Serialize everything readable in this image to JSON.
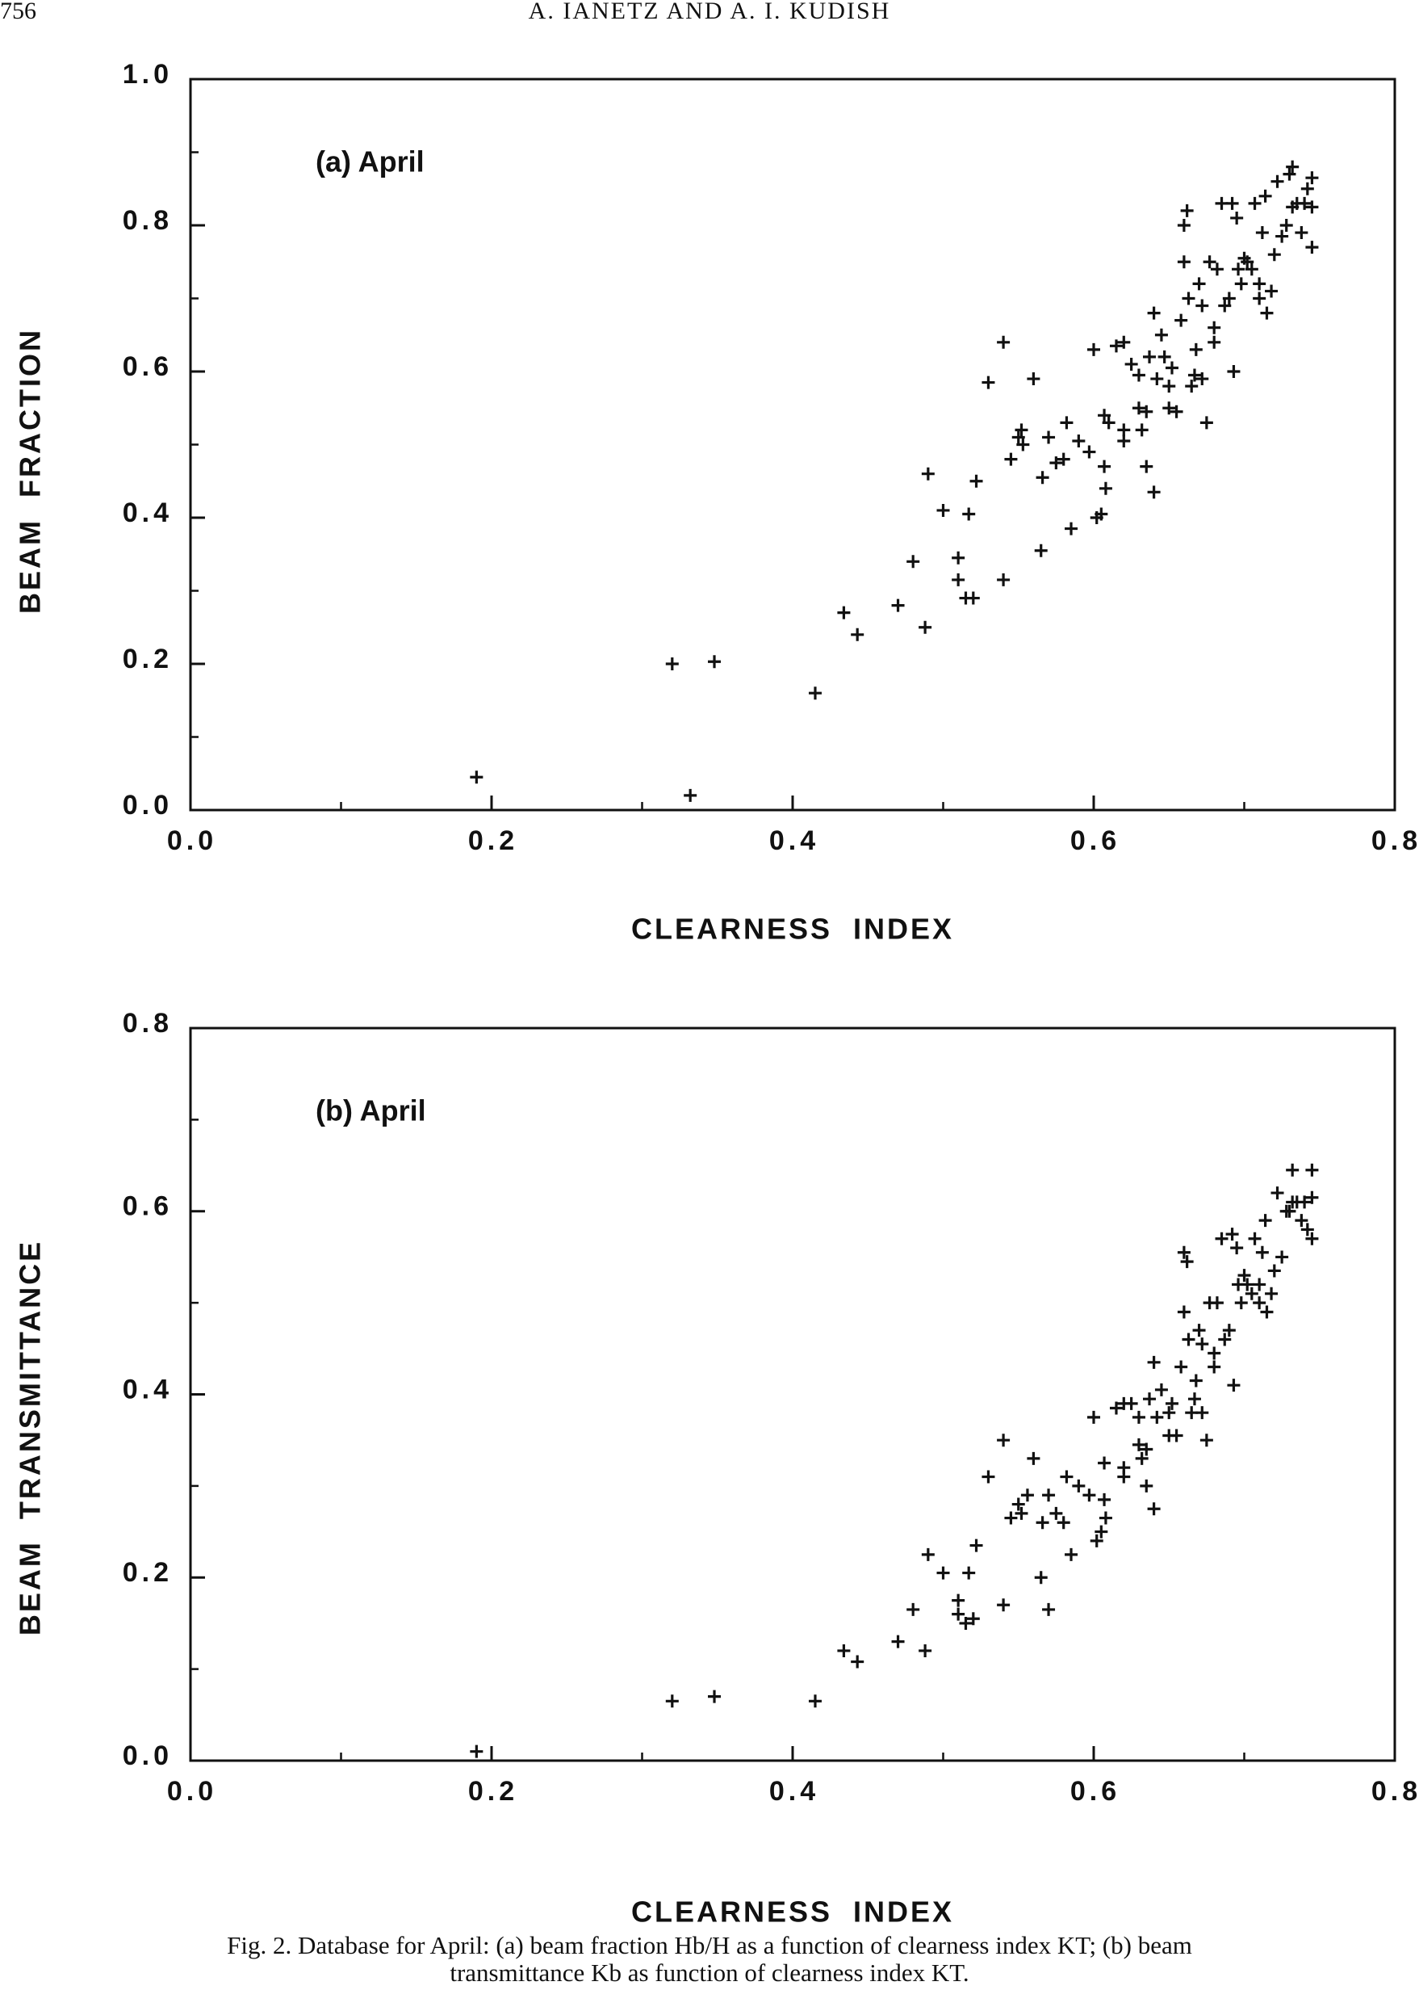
{
  "header": {
    "page": "756",
    "authors": "A. IANETZ AND A. I. KUDISH"
  },
  "caption": [
    "Fig. 2. Database for April: (a) beam fraction Hb/H as a function of clearness index KT; (b) beam",
    "transmittance Kb as function of clearness index KT."
  ],
  "chart_data": [
    {
      "type": "scatter",
      "annotation": "(a) April",
      "xlabel": "CLEARNESS  INDEX",
      "ylabel": "BEAM  FRACTION",
      "color": "#111111",
      "xlim": [
        0,
        0.8
      ],
      "ylim": [
        0,
        1
      ],
      "xticks": [
        {
          "value": 0,
          "label": "0.0"
        },
        0.2,
        0.4,
        0.6,
        0.8
      ],
      "yticks": [
        {
          "value": 0,
          "label": "0.0"
        },
        0.2,
        0.4,
        0.6,
        0.8,
        {
          "value": 1,
          "label": "1.0"
        }
      ],
      "xminor": [
        0.1,
        0.3,
        0.5,
        0.7
      ],
      "yminor": [
        0.1,
        0.3,
        0.5,
        0.7,
        0.9
      ],
      "x": [
        0.19,
        0.32,
        0.348,
        0.332,
        0.415,
        0.434,
        0.443,
        0.47,
        0.48,
        0.488,
        0.49,
        0.5,
        0.51,
        0.51,
        0.515,
        0.517,
        0.52,
        0.522,
        0.53,
        0.54,
        0.54,
        0.545,
        0.55,
        0.552,
        0.553,
        0.56,
        0.565,
        0.566,
        0.57,
        0.575,
        0.58,
        0.582,
        0.585,
        0.59,
        0.597,
        0.6,
        0.602,
        0.605,
        0.607,
        0.607,
        0.608,
        0.61,
        0.615,
        0.62,
        0.62,
        0.62,
        0.625,
        0.63,
        0.63,
        0.632,
        0.635,
        0.635,
        0.637,
        0.64,
        0.64,
        0.642,
        0.645,
        0.647,
        0.65,
        0.65,
        0.652,
        0.655,
        0.658,
        0.66,
        0.66,
        0.662,
        0.663,
        0.665,
        0.667,
        0.668,
        0.67,
        0.672,
        0.672,
        0.675,
        0.677,
        0.68,
        0.68,
        0.682,
        0.685,
        0.687,
        0.69,
        0.692,
        0.693,
        0.695,
        0.696,
        0.698,
        0.7,
        0.702,
        0.705,
        0.707,
        0.71,
        0.71,
        0.712,
        0.714,
        0.715,
        0.718,
        0.72,
        0.722,
        0.725,
        0.728,
        0.73,
        0.732,
        0.735,
        0.738,
        0.74,
        0.742,
        0.745,
        0.745,
        0.745,
        0.732
      ],
      "values": [
        0.045,
        0.2,
        0.203,
        0.02,
        0.16,
        0.27,
        0.24,
        0.28,
        0.34,
        0.25,
        0.46,
        0.41,
        0.345,
        0.315,
        0.29,
        0.405,
        0.29,
        0.45,
        0.585,
        0.64,
        0.315,
        0.48,
        0.51,
        0.52,
        0.5,
        0.59,
        0.355,
        0.455,
        0.51,
        0.475,
        0.48,
        0.53,
        0.385,
        0.505,
        0.49,
        0.63,
        0.4,
        0.405,
        0.54,
        0.47,
        0.44,
        0.53,
        0.635,
        0.64,
        0.52,
        0.505,
        0.61,
        0.595,
        0.55,
        0.52,
        0.47,
        0.545,
        0.62,
        0.68,
        0.435,
        0.59,
        0.65,
        0.62,
        0.58,
        0.55,
        0.605,
        0.545,
        0.67,
        0.75,
        0.8,
        0.82,
        0.7,
        0.58,
        0.595,
        0.63,
        0.72,
        0.59,
        0.69,
        0.53,
        0.75,
        0.64,
        0.66,
        0.74,
        0.83,
        0.69,
        0.7,
        0.83,
        0.6,
        0.81,
        0.74,
        0.72,
        0.755,
        0.75,
        0.74,
        0.83,
        0.72,
        0.7,
        0.79,
        0.84,
        0.68,
        0.71,
        0.76,
        0.86,
        0.785,
        0.8,
        0.87,
        0.88,
        0.83,
        0.79,
        0.83,
        0.85,
        0.77,
        0.865,
        0.825,
        0.825
      ]
    },
    {
      "type": "scatter",
      "annotation": "(b) April",
      "xlabel": "CLEARNESS  INDEX",
      "ylabel": "BEAM  TRANSMITTANCE",
      "color": "#111111",
      "xlim": [
        0,
        0.8
      ],
      "ylim": [
        0,
        0.8
      ],
      "xticks": [
        {
          "value": 0,
          "label": "0.0"
        },
        0.2,
        0.4,
        0.6,
        0.8
      ],
      "yticks": [
        {
          "value": 0,
          "label": "0.0"
        },
        0.2,
        0.4,
        0.6,
        0.8
      ],
      "xminor": [
        0.1,
        0.3,
        0.5,
        0.7
      ],
      "yminor": [
        0.1,
        0.3,
        0.5,
        0.7
      ],
      "x": [
        0.19,
        0.32,
        0.348,
        0.415,
        0.434,
        0.443,
        0.47,
        0.48,
        0.488,
        0.49,
        0.5,
        0.51,
        0.51,
        0.515,
        0.517,
        0.52,
        0.522,
        0.53,
        0.54,
        0.54,
        0.545,
        0.55,
        0.552,
        0.556,
        0.56,
        0.565,
        0.566,
        0.57,
        0.57,
        0.575,
        0.58,
        0.582,
        0.585,
        0.59,
        0.597,
        0.6,
        0.602,
        0.605,
        0.607,
        0.607,
        0.608,
        0.615,
        0.62,
        0.62,
        0.62,
        0.625,
        0.63,
        0.63,
        0.632,
        0.635,
        0.635,
        0.637,
        0.64,
        0.64,
        0.642,
        0.645,
        0.65,
        0.65,
        0.652,
        0.655,
        0.658,
        0.66,
        0.66,
        0.662,
        0.663,
        0.665,
        0.667,
        0.668,
        0.67,
        0.672,
        0.672,
        0.675,
        0.677,
        0.68,
        0.68,
        0.682,
        0.685,
        0.687,
        0.69,
        0.692,
        0.693,
        0.695,
        0.696,
        0.698,
        0.7,
        0.702,
        0.705,
        0.707,
        0.71,
        0.71,
        0.712,
        0.714,
        0.715,
        0.718,
        0.72,
        0.722,
        0.725,
        0.728,
        0.73,
        0.732,
        0.735,
        0.738,
        0.74,
        0.742,
        0.745,
        0.745,
        0.745,
        0.732
      ],
      "values": [
        0.01,
        0.065,
        0.07,
        0.065,
        0.12,
        0.108,
        0.13,
        0.165,
        0.12,
        0.225,
        0.205,
        0.175,
        0.16,
        0.15,
        0.205,
        0.155,
        0.235,
        0.31,
        0.35,
        0.17,
        0.265,
        0.28,
        0.27,
        0.29,
        0.33,
        0.2,
        0.26,
        0.165,
        0.29,
        0.27,
        0.26,
        0.31,
        0.225,
        0.3,
        0.29,
        0.375,
        0.24,
        0.25,
        0.325,
        0.285,
        0.265,
        0.385,
        0.39,
        0.32,
        0.31,
        0.39,
        0.375,
        0.345,
        0.33,
        0.3,
        0.34,
        0.395,
        0.435,
        0.275,
        0.375,
        0.405,
        0.38,
        0.355,
        0.39,
        0.355,
        0.43,
        0.49,
        0.555,
        0.545,
        0.46,
        0.38,
        0.395,
        0.415,
        0.47,
        0.38,
        0.455,
        0.35,
        0.5,
        0.43,
        0.445,
        0.5,
        0.57,
        0.46,
        0.47,
        0.575,
        0.41,
        0.56,
        0.52,
        0.5,
        0.53,
        0.52,
        0.51,
        0.57,
        0.52,
        0.5,
        0.555,
        0.59,
        0.49,
        0.51,
        0.535,
        0.62,
        0.55,
        0.6,
        0.6,
        0.645,
        0.61,
        0.59,
        0.61,
        0.58,
        0.57,
        0.645,
        0.615,
        0.61
      ]
    }
  ]
}
